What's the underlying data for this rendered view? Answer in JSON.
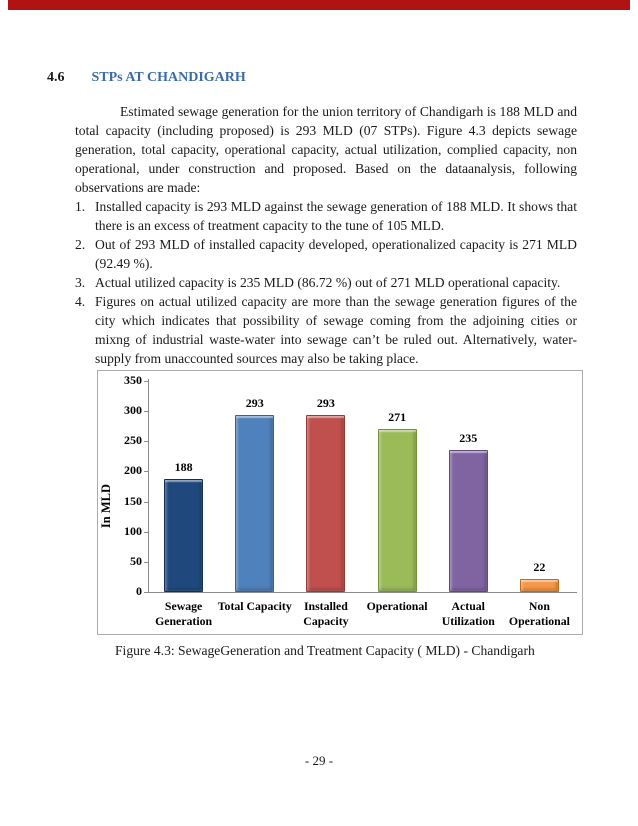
{
  "page": {
    "top_bar_color": "#b01312",
    "section": {
      "number": "4.6",
      "title": "STPs AT CHANDIGARH",
      "title_color": "#3c6ca8"
    },
    "paragraph": "Estimated sewage generation for the union territory of Chandigarh is 188 MLD and total capacity (including proposed) is 293 MLD (07 STPs). Figure 4.3 depicts sewage generation, total capacity, operational capacity, actual utilization, complied capacity, non operational, under construction and proposed.  Based on the dataanalysis, following observations are made:",
    "observations": [
      {
        "number": "1.",
        "text": "Installed capacity is 293 MLD against the sewage generation of 188 MLD. It shows that there is an excess of treatment capacity to the tune of 105 MLD."
      },
      {
        "number": "2.",
        "text": "Out of 293 MLD of installed capacity developed, operationalized capacity is 271 MLD (92.49 %)."
      },
      {
        "number": "3.",
        "text": "Actual utilized capacity is 235 MLD (86.72 %) out of 271 MLD operational capacity."
      },
      {
        "number": "4.",
        "text": "Figures on actual utilized capacity are more than the sewage generation figures of the city which indicates that possibility of sewage coming from the adjoining cities or mixng of industrial waste-water into sewage can’t be ruled out. Alternatively, water-supply from unaccounted sources may also be taking place."
      }
    ],
    "figure_caption": "Figure 4.3: SewageGeneration and Treatment Capacity ( MLD) - Chandigarh",
    "page_number": "- 29 -"
  },
  "chart_data": {
    "type": "bar",
    "categories": [
      "Sewage\nGeneration",
      "Total Capacity",
      "Installed\nCapacity",
      "Operational",
      "Actual\nUtilization",
      "Non\nOperational"
    ],
    "values": [
      188,
      293,
      293,
      271,
      235,
      22
    ],
    "bar_colors": [
      "#1f497d",
      "#4f81bd",
      "#c0504d",
      "#9bbb59",
      "#8064a2",
      "#f79646"
    ],
    "bar_border_colors": [
      "#142f52",
      "#38618f",
      "#8f3c39",
      "#75913f",
      "#5f4a7a",
      "#b66d1e"
    ],
    "title": "",
    "xlabel": "",
    "ylabel": "In MLD",
    "ylim": [
      0,
      350
    ],
    "ytick_interval": 50,
    "yticks": [
      0,
      50,
      100,
      150,
      200,
      250,
      300,
      350
    ],
    "grid": false,
    "legend_position": "none",
    "data_labels": true
  }
}
